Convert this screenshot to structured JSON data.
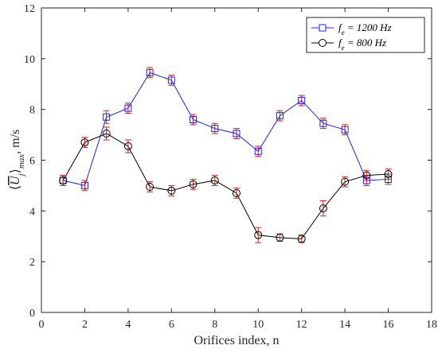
{
  "chart_data": {
    "type": "line",
    "xlabel": "Orifices index, n",
    "ylabel": "⟨U_j⟩_max, m/s",
    "xlim": [
      0,
      18
    ],
    "ylim": [
      0,
      12
    ],
    "xticks": [
      0,
      2,
      4,
      6,
      8,
      10,
      12,
      14,
      16,
      18
    ],
    "yticks": [
      0,
      2,
      4,
      6,
      8,
      10,
      12
    ],
    "grid": false,
    "legend_position": "top-right",
    "series": [
      {
        "name": "f_e = 1200 Hz",
        "legend_parts": {
          "var": "f",
          "sub": "e",
          "rest": " = 1200 Hz"
        },
        "color": "#1f1fff",
        "marker": "square",
        "x": [
          1,
          2,
          3,
          4,
          5,
          6,
          7,
          8,
          9,
          10,
          11,
          12,
          13,
          14,
          15,
          16
        ],
        "y": [
          5.2,
          5.0,
          7.7,
          8.05,
          9.45,
          9.15,
          7.6,
          7.25,
          7.05,
          6.35,
          7.75,
          8.35,
          7.45,
          7.2,
          5.2,
          5.25
        ],
        "error": [
          0.2,
          0.2,
          0.25,
          0.2,
          0.2,
          0.2,
          0.2,
          0.2,
          0.2,
          0.2,
          0.2,
          0.2,
          0.2,
          0.2,
          0.2,
          0.2
        ]
      },
      {
        "name": "f_e = 800 Hz",
        "legend_parts": {
          "var": "f",
          "sub": "e",
          "rest": " = 800 Hz"
        },
        "color": "#000000",
        "marker": "circle",
        "x": [
          1,
          2,
          3,
          4,
          5,
          6,
          7,
          8,
          9,
          10,
          11,
          12,
          13,
          14,
          15,
          16
        ],
        "y": [
          5.2,
          6.7,
          7.05,
          6.55,
          4.95,
          4.8,
          5.05,
          5.2,
          4.7,
          3.05,
          2.95,
          2.9,
          4.1,
          5.15,
          5.4,
          5.45
        ],
        "error": [
          0.2,
          0.2,
          0.25,
          0.25,
          0.2,
          0.2,
          0.2,
          0.2,
          0.2,
          0.3,
          0.15,
          0.15,
          0.3,
          0.2,
          0.2,
          0.2
        ]
      }
    ],
    "error_color": "#e8191c"
  }
}
